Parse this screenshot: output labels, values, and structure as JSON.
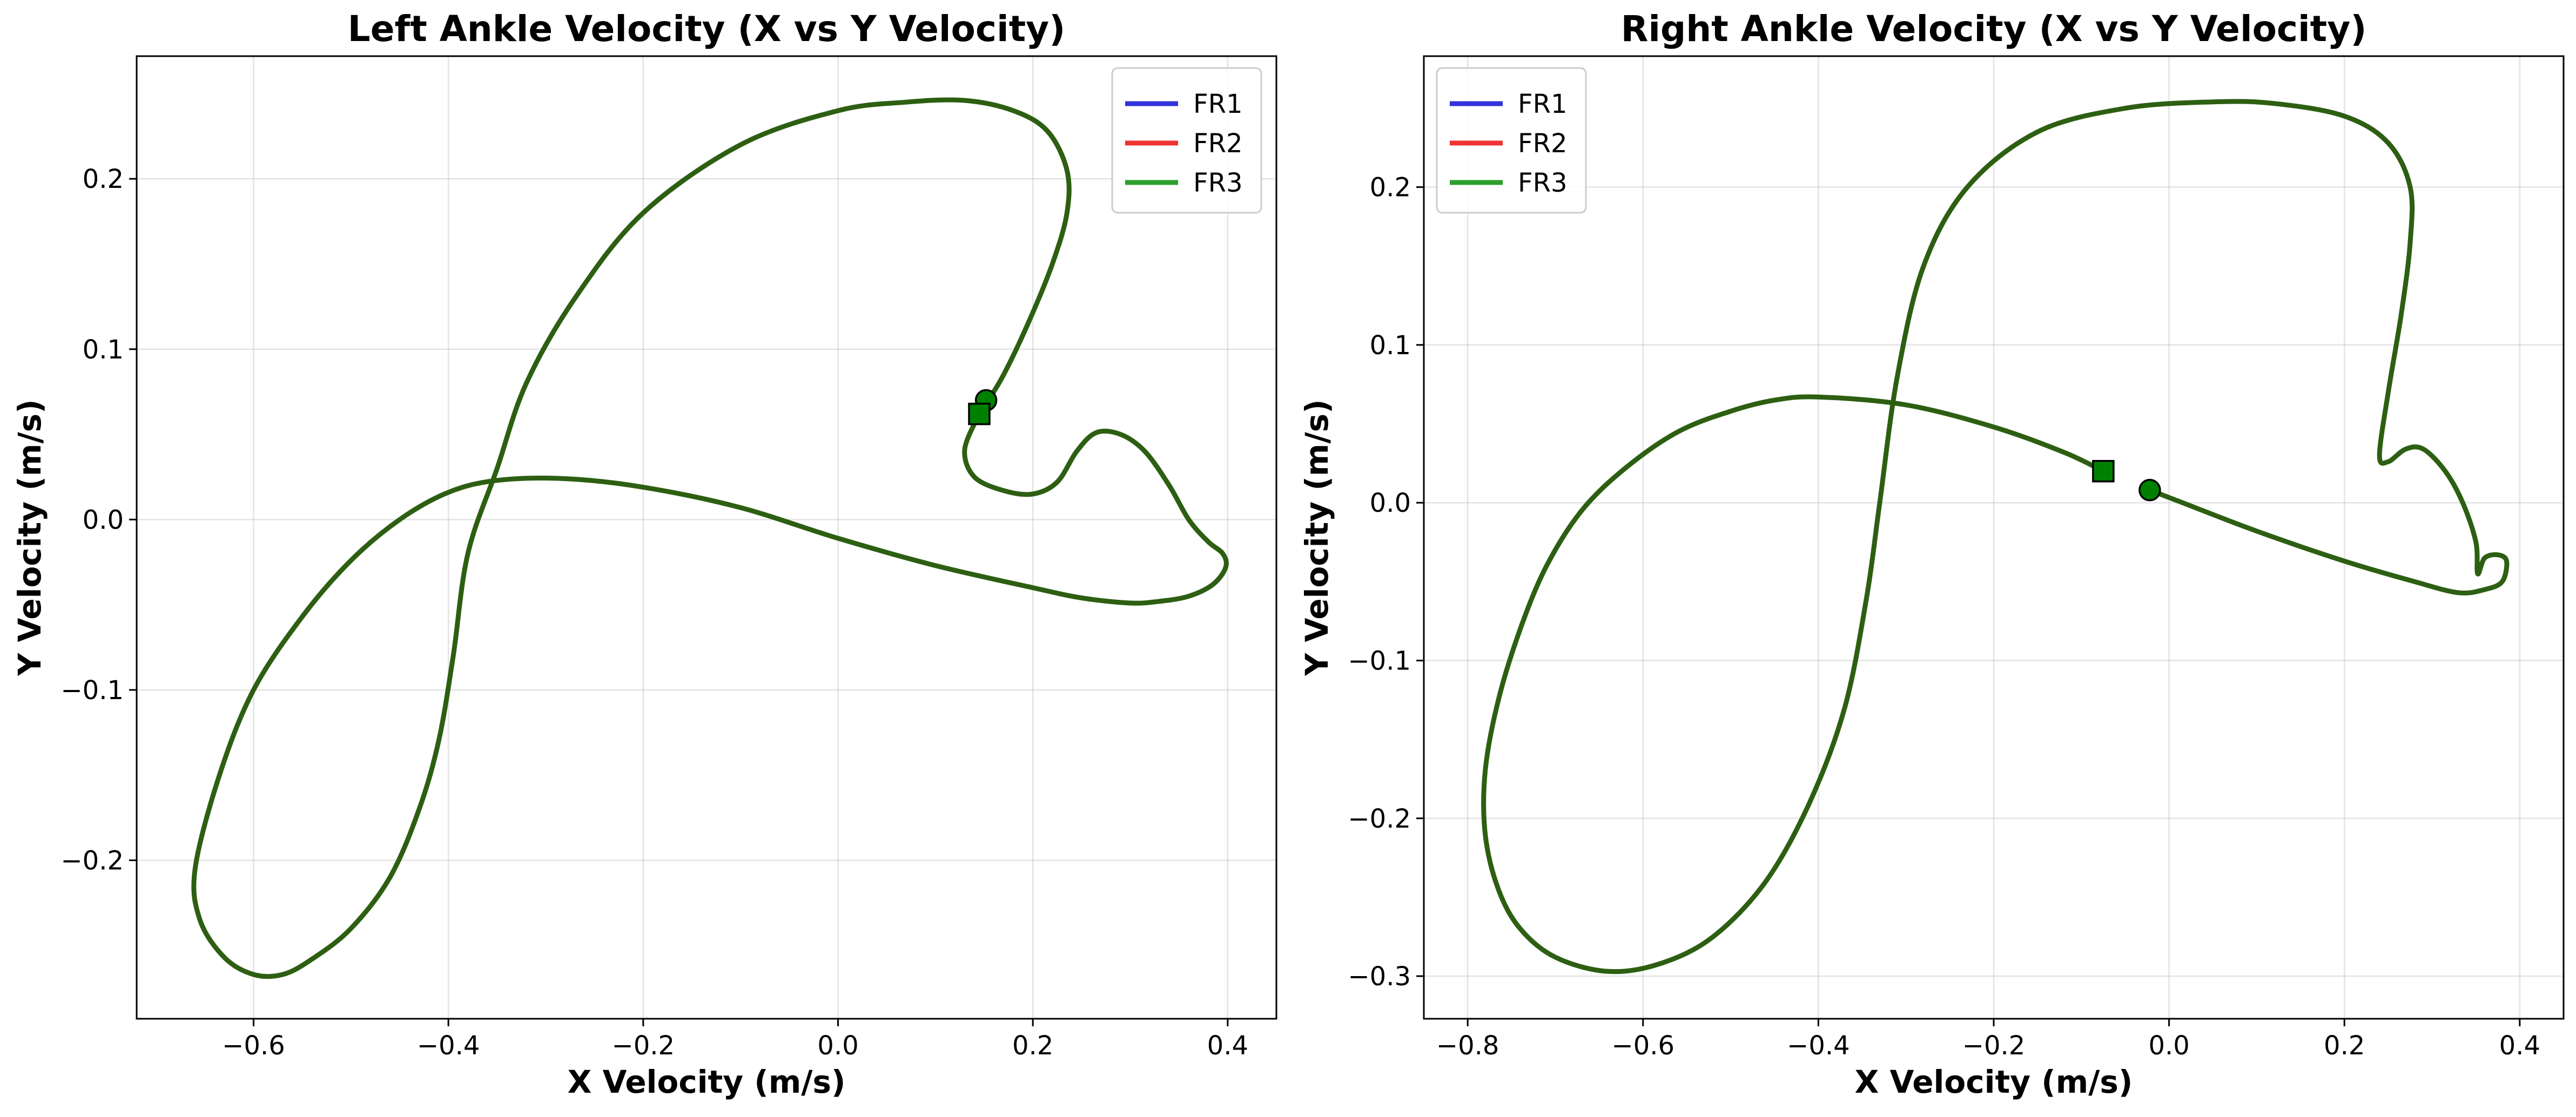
{
  "chart_data": [
    {
      "type": "line",
      "title": "Left Ankle Velocity (X vs Y Velocity)",
      "xlabel": "X Velocity (m/s)",
      "ylabel": "Y Velocity (m/s)",
      "xlim": [
        -0.72,
        0.45
      ],
      "ylim": [
        -0.293,
        0.272
      ],
      "xticks": [
        -0.6,
        -0.4,
        -0.2,
        0.0,
        0.2,
        0.4
      ],
      "xtick_labels": [
        "−0.6",
        "−0.4",
        "−0.2",
        "0.0",
        "0.2",
        "0.4"
      ],
      "yticks": [
        -0.2,
        -0.1,
        0.0,
        0.1,
        0.2
      ],
      "ytick_labels": [
        "−0.2",
        "−0.1",
        "0.0",
        "0.1",
        "0.2"
      ],
      "grid": true,
      "legend_position": "top-right",
      "legend": [
        {
          "name": "FR1",
          "color": "#3333dd"
        },
        {
          "name": "FR2",
          "color": "#ee3333"
        },
        {
          "name": "FR3",
          "color": "#2ca02c"
        }
      ],
      "series": [
        {
          "name": "FR3",
          "color": "#2d5f12",
          "points": [
            [
              0.145,
              0.062
            ],
            [
              0.13,
              0.041
            ],
            [
              0.14,
              0.025
            ],
            [
              0.17,
              0.017
            ],
            [
              0.2,
              0.015
            ],
            [
              0.225,
              0.022
            ],
            [
              0.245,
              0.04
            ],
            [
              0.265,
              0.051
            ],
            [
              0.29,
              0.05
            ],
            [
              0.315,
              0.04
            ],
            [
              0.34,
              0.02
            ],
            [
              0.36,
              0.0
            ],
            [
              0.38,
              -0.013
            ],
            [
              0.395,
              -0.02
            ],
            [
              0.398,
              -0.028
            ],
            [
              0.385,
              -0.038
            ],
            [
              0.36,
              -0.045
            ],
            [
              0.33,
              -0.048
            ],
            [
              0.3,
              -0.049
            ],
            [
              0.25,
              -0.046
            ],
            [
              0.2,
              -0.04
            ],
            [
              0.1,
              -0.027
            ],
            [
              0.0,
              -0.011
            ],
            [
              -0.1,
              0.007
            ],
            [
              -0.2,
              0.019
            ],
            [
              -0.28,
              0.024
            ],
            [
              -0.35,
              0.023
            ],
            [
              -0.4,
              0.016
            ],
            [
              -0.45,
              0.0
            ],
            [
              -0.5,
              -0.024
            ],
            [
              -0.55,
              -0.057
            ],
            [
              -0.6,
              -0.1
            ],
            [
              -0.635,
              -0.15
            ],
            [
              -0.66,
              -0.205
            ],
            [
              -0.655,
              -0.235
            ],
            [
              -0.63,
              -0.257
            ],
            [
              -0.6,
              -0.267
            ],
            [
              -0.57,
              -0.267
            ],
            [
              -0.54,
              -0.258
            ],
            [
              -0.5,
              -0.24
            ],
            [
              -0.46,
              -0.21
            ],
            [
              -0.43,
              -0.17
            ],
            [
              -0.41,
              -0.13
            ],
            [
              -0.395,
              -0.08
            ],
            [
              -0.38,
              -0.02
            ],
            [
              -0.35,
              0.03
            ],
            [
              -0.32,
              0.08
            ],
            [
              -0.27,
              0.13
            ],
            [
              -0.2,
              0.18
            ],
            [
              -0.1,
              0.22
            ],
            [
              0.0,
              0.24
            ],
            [
              0.07,
              0.245
            ],
            [
              0.13,
              0.246
            ],
            [
              0.18,
              0.24
            ],
            [
              0.215,
              0.228
            ],
            [
              0.235,
              0.205
            ],
            [
              0.235,
              0.18
            ],
            [
              0.22,
              0.15
            ],
            [
              0.195,
              0.115
            ],
            [
              0.17,
              0.085
            ],
            [
              0.152,
              0.068
            ]
          ],
          "start_marker": {
            "shape": "circle",
            "x": 0.152,
            "y": 0.07
          },
          "end_marker": {
            "shape": "square",
            "x": 0.145,
            "y": 0.062
          }
        }
      ]
    },
    {
      "type": "line",
      "title": "Right Ankle Velocity (X vs Y Velocity)",
      "xlabel": "X Velocity (m/s)",
      "ylabel": "Y Velocity (m/s)",
      "xlim": [
        -0.85,
        0.45
      ],
      "ylim": [
        -0.327,
        0.283
      ],
      "xticks": [
        -0.8,
        -0.6,
        -0.4,
        -0.2,
        0.0,
        0.2,
        0.4
      ],
      "xtick_labels": [
        "−0.8",
        "−0.6",
        "−0.4",
        "−0.2",
        "0.0",
        "0.2",
        "0.4"
      ],
      "yticks": [
        -0.3,
        -0.2,
        -0.1,
        0.0,
        0.1,
        0.2
      ],
      "ytick_labels": [
        "−0.3",
        "−0.2",
        "−0.1",
        "0.0",
        "0.1",
        "0.2"
      ],
      "grid": true,
      "legend_position": "top-left",
      "legend": [
        {
          "name": "FR1",
          "color": "#3333dd"
        },
        {
          "name": "FR2",
          "color": "#ee3333"
        },
        {
          "name": "FR3",
          "color": "#2ca02c"
        }
      ],
      "series": [
        {
          "name": "FR3",
          "color": "#2d5f12",
          "points": [
            [
              -0.075,
              0.02
            ],
            [
              -0.12,
              0.032
            ],
            [
              -0.2,
              0.048
            ],
            [
              -0.3,
              0.062
            ],
            [
              -0.4,
              0.067
            ],
            [
              -0.45,
              0.065
            ],
            [
              -0.5,
              0.058
            ],
            [
              -0.56,
              0.045
            ],
            [
              -0.62,
              0.022
            ],
            [
              -0.67,
              -0.005
            ],
            [
              -0.71,
              -0.04
            ],
            [
              -0.74,
              -0.08
            ],
            [
              -0.765,
              -0.125
            ],
            [
              -0.78,
              -0.17
            ],
            [
              -0.78,
              -0.21
            ],
            [
              -0.765,
              -0.245
            ],
            [
              -0.74,
              -0.27
            ],
            [
              -0.7,
              -0.288
            ],
            [
              -0.64,
              -0.297
            ],
            [
              -0.58,
              -0.292
            ],
            [
              -0.52,
              -0.275
            ],
            [
              -0.46,
              -0.24
            ],
            [
              -0.41,
              -0.19
            ],
            [
              -0.37,
              -0.13
            ],
            [
              -0.345,
              -0.06
            ],
            [
              -0.33,
              0.0
            ],
            [
              -0.31,
              0.08
            ],
            [
              -0.28,
              0.15
            ],
            [
              -0.23,
              0.2
            ],
            [
              -0.15,
              0.235
            ],
            [
              -0.05,
              0.25
            ],
            [
              0.05,
              0.254
            ],
            [
              0.12,
              0.253
            ],
            [
              0.2,
              0.245
            ],
            [
              0.25,
              0.228
            ],
            [
              0.275,
              0.2
            ],
            [
              0.275,
              0.165
            ],
            [
              0.265,
              0.12
            ],
            [
              0.25,
              0.07
            ],
            [
              0.24,
              0.03
            ],
            [
              0.25,
              0.026
            ],
            [
              0.27,
              0.034
            ],
            [
              0.29,
              0.034
            ],
            [
              0.315,
              0.02
            ],
            [
              0.335,
              0.0
            ],
            [
              0.35,
              -0.025
            ],
            [
              0.352,
              -0.045
            ],
            [
              0.36,
              -0.035
            ],
            [
              0.375,
              -0.033
            ],
            [
              0.385,
              -0.037
            ],
            [
              0.38,
              -0.05
            ],
            [
              0.36,
              -0.055
            ],
            [
              0.33,
              -0.057
            ],
            [
              0.28,
              -0.05
            ],
            [
              0.2,
              -0.037
            ],
            [
              0.1,
              -0.018
            ],
            [
              0.02,
              -0.001
            ],
            [
              -0.022,
              0.008
            ]
          ],
          "start_marker": {
            "shape": "circle",
            "x": -0.022,
            "y": 0.008
          },
          "end_marker": {
            "shape": "square",
            "x": -0.075,
            "y": 0.02
          }
        }
      ]
    }
  ]
}
